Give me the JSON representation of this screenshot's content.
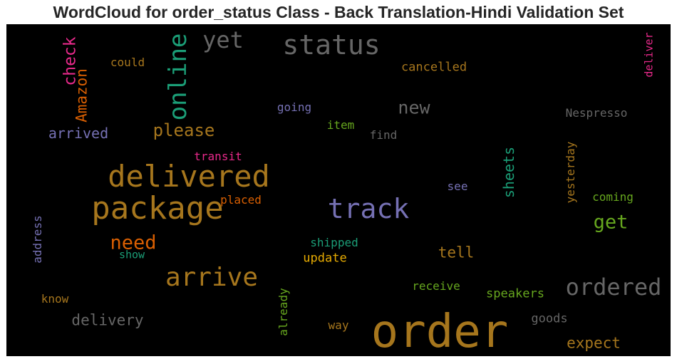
{
  "chart_data": {
    "type": "wordcloud",
    "title": "WordCloud for order_status Class - Back Translation-Hindi Validation Set",
    "colors": {
      "background": "#000000",
      "title": "#262626"
    },
    "words": [
      {
        "text": "order",
        "size": 64,
        "color": "#a6761d",
        "vertical": false
      },
      {
        "text": "package",
        "size": 44,
        "color": "#a6761d",
        "vertical": false
      },
      {
        "text": "delivered",
        "size": 42,
        "color": "#a6761d",
        "vertical": false
      },
      {
        "text": "status",
        "size": 38,
        "color": "#666666",
        "vertical": false
      },
      {
        "text": "track",
        "size": 38,
        "color": "#7570b3",
        "vertical": false
      },
      {
        "text": "arrive",
        "size": 36,
        "color": "#a6761d",
        "vertical": false
      },
      {
        "text": "online",
        "size": 34,
        "color": "#1b9e77",
        "vertical": true
      },
      {
        "text": "ordered",
        "size": 32,
        "color": "#666666",
        "vertical": false
      },
      {
        "text": "yet",
        "size": 32,
        "color": "#666666",
        "vertical": false
      },
      {
        "text": "need",
        "size": 27,
        "color": "#d95f02",
        "vertical": false
      },
      {
        "text": "get",
        "size": 27,
        "color": "#66a61e",
        "vertical": false
      },
      {
        "text": "new",
        "size": 25,
        "color": "#666666",
        "vertical": false
      },
      {
        "text": "please",
        "size": 24,
        "color": "#a6761d",
        "vertical": false
      },
      {
        "text": "check",
        "size": 23,
        "color": "#e7298a",
        "vertical": true
      },
      {
        "text": "Amazon",
        "size": 21,
        "color": "#d95f02",
        "vertical": true
      },
      {
        "text": "delivery",
        "size": 21,
        "color": "#666666",
        "vertical": false
      },
      {
        "text": "expect",
        "size": 21,
        "color": "#a6761d",
        "vertical": false
      },
      {
        "text": "tell",
        "size": 21,
        "color": "#a6761d",
        "vertical": false
      },
      {
        "text": "sheets",
        "size": 20,
        "color": "#1b9e77",
        "vertical": true
      },
      {
        "text": "arrived",
        "size": 20,
        "color": "#7570b3",
        "vertical": false
      },
      {
        "text": "cancelled",
        "size": 17,
        "color": "#a6761d",
        "vertical": false
      },
      {
        "text": "Nespresso",
        "size": 16,
        "color": "#666666",
        "vertical": false
      },
      {
        "text": "yesterday",
        "size": 16,
        "color": "#a6761d",
        "vertical": true
      },
      {
        "text": "coming",
        "size": 16,
        "color": "#66a61e",
        "vertical": false
      },
      {
        "text": "speakers",
        "size": 17,
        "color": "#66a61e",
        "vertical": false
      },
      {
        "text": "goods",
        "size": 17,
        "color": "#666666",
        "vertical": false
      },
      {
        "text": "receive",
        "size": 16,
        "color": "#66a61e",
        "vertical": false
      },
      {
        "text": "update",
        "size": 17,
        "color": "#e6ab02",
        "vertical": false
      },
      {
        "text": "shipped",
        "size": 16,
        "color": "#1b9e77",
        "vertical": false
      },
      {
        "text": "show",
        "size": 15,
        "color": "#1b9e77",
        "vertical": false
      },
      {
        "text": "placed",
        "size": 16,
        "color": "#d95f02",
        "vertical": false
      },
      {
        "text": "transit",
        "size": 16,
        "color": "#e7298a",
        "vertical": false
      },
      {
        "text": "item",
        "size": 16,
        "color": "#66a61e",
        "vertical": false
      },
      {
        "text": "find",
        "size": 16,
        "color": "#666666",
        "vertical": false
      },
      {
        "text": "going",
        "size": 16,
        "color": "#7570b3",
        "vertical": false
      },
      {
        "text": "see",
        "size": 16,
        "color": "#7570b3",
        "vertical": false
      },
      {
        "text": "could",
        "size": 16,
        "color": "#a6761d",
        "vertical": false
      },
      {
        "text": "know",
        "size": 16,
        "color": "#a6761d",
        "vertical": false
      },
      {
        "text": "way",
        "size": 16,
        "color": "#a6761d",
        "vertical": false
      },
      {
        "text": "address",
        "size": 16,
        "color": "#7570b3",
        "vertical": true
      },
      {
        "text": "already",
        "size": 16,
        "color": "#66a61e",
        "vertical": true
      },
      {
        "text": "deliver",
        "size": 15,
        "color": "#e7298a",
        "vertical": true
      }
    ]
  }
}
